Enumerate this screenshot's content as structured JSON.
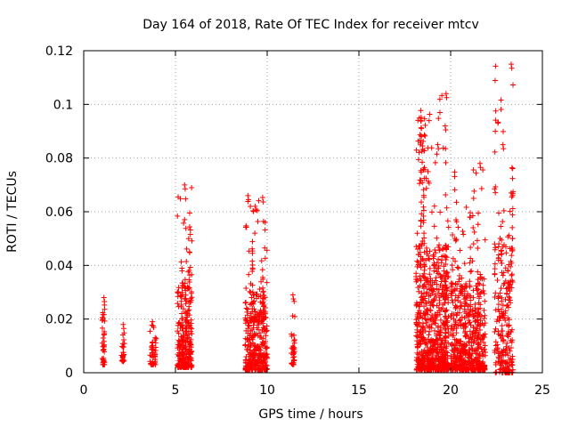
{
  "chart_data": {
    "type": "scatter",
    "title": "Day 164 of 2018, Rate Of TEC Index for receiver mtcv",
    "xlabel": "GPS time / hours",
    "ylabel": "ROTI / TECUs",
    "xlim": [
      0,
      25
    ],
    "ylim": [
      0,
      0.12
    ],
    "xticks": [
      0,
      5,
      10,
      15,
      20,
      25
    ],
    "xtick_labels": [
      "0",
      "5",
      "10",
      "15",
      "20",
      "25"
    ],
    "yticks": [
      0,
      0.02,
      0.04,
      0.06,
      0.08,
      0.1,
      0.12
    ],
    "ytick_labels": [
      "0",
      "0.02",
      "0.04",
      "0.06",
      "0.08",
      "0.1",
      "0.12"
    ],
    "grid": true,
    "marker": "+",
    "color": "#ff0000",
    "clusters": [
      {
        "x_range": [
          1.0,
          1.15
        ],
        "y_range": [
          0.003,
          0.028
        ],
        "density": 28
      },
      {
        "x_range": [
          2.05,
          2.2
        ],
        "y_range": [
          0.004,
          0.018
        ],
        "density": 12
      },
      {
        "x_range": [
          3.6,
          3.95
        ],
        "y_range": [
          0.003,
          0.019
        ],
        "density": 30
      },
      {
        "x_range": [
          5.1,
          5.9
        ],
        "y_range": [
          0.002,
          0.07
        ],
        "density": 260
      },
      {
        "x_range": [
          8.8,
          10.0
        ],
        "y_range": [
          0.001,
          0.066
        ],
        "density": 360
      },
      {
        "x_range": [
          11.3,
          11.5
        ],
        "y_range": [
          0.003,
          0.029
        ],
        "density": 24
      },
      {
        "x_range": [
          18.1,
          19.9
        ],
        "y_range": [
          0.001,
          0.104
        ],
        "density": 700
      },
      {
        "x_range": [
          20.0,
          21.9
        ],
        "y_range": [
          0.001,
          0.078
        ],
        "density": 520
      },
      {
        "x_range": [
          22.4,
          23.4
        ],
        "y_range": [
          0.0,
          0.115
        ],
        "density": 240
      }
    ],
    "peaks": [
      {
        "x": 1.1,
        "y": 0.028
      },
      {
        "x": 2.15,
        "y": 0.018
      },
      {
        "x": 3.75,
        "y": 0.019
      },
      {
        "x": 5.5,
        "y": 0.07
      },
      {
        "x": 8.95,
        "y": 0.066
      },
      {
        "x": 11.4,
        "y": 0.029
      },
      {
        "x": 19.3,
        "y": 0.085
      },
      {
        "x": 19.75,
        "y": 0.104
      },
      {
        "x": 19.7,
        "y": 0.092
      },
      {
        "x": 21.6,
        "y": 0.078
      },
      {
        "x": 22.85,
        "y": 0.085
      },
      {
        "x": 23.3,
        "y": 0.115
      },
      {
        "x": 23.3,
        "y": 0.067
      }
    ]
  }
}
